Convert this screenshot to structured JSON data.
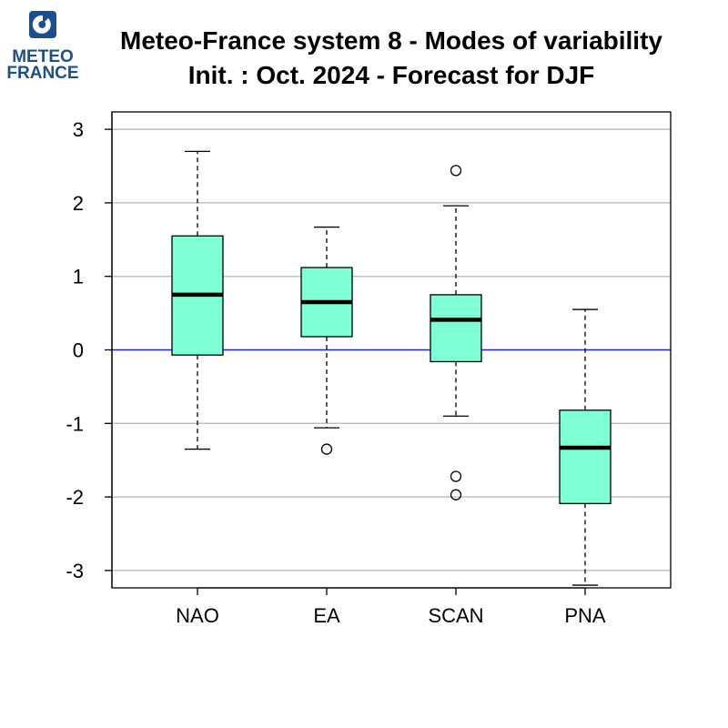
{
  "logo": {
    "line1": "METEO",
    "line2": "FRANCE",
    "color": "#1c4f8c"
  },
  "colors": {
    "box_fill": "#7fffd4",
    "zero_line": "#2222cc",
    "grid": "#c0c0c0"
  },
  "chart_data": {
    "type": "boxplot",
    "title": "Meteo-France system 8 - Modes of variability",
    "subtitle": "Init. : Oct. 2024 - Forecast for DJF",
    "xlabel": "",
    "ylabel": "",
    "ylim": [
      -3.2,
      3.2
    ],
    "yticks": [
      3,
      2,
      1,
      0,
      -1,
      -2,
      -3
    ],
    "ytick_labels": [
      "3",
      "2",
      "1",
      "0",
      "-1",
      "-2",
      "-3"
    ],
    "grid": true,
    "reference_line": 0,
    "categories": [
      "NAO",
      "EA",
      "SCAN",
      "PNA"
    ],
    "boxes": [
      {
        "label": "NAO",
        "whisker_low": -1.35,
        "q1": -0.07,
        "median": 0.75,
        "q3": 1.55,
        "whisker_high": 2.7,
        "outliers": []
      },
      {
        "label": "EA",
        "whisker_low": -1.06,
        "q1": 0.18,
        "median": 0.65,
        "q3": 1.12,
        "whisker_high": 1.67,
        "outliers": [
          -1.35
        ]
      },
      {
        "label": "SCAN",
        "whisker_low": -0.9,
        "q1": -0.16,
        "median": 0.41,
        "q3": 0.75,
        "whisker_high": 1.96,
        "outliers": [
          2.44,
          -1.72,
          -1.97
        ]
      },
      {
        "label": "PNA",
        "whisker_low": -3.2,
        "q1": -2.09,
        "median": -1.33,
        "q3": -0.82,
        "whisker_high": 0.55,
        "outliers": []
      }
    ]
  }
}
